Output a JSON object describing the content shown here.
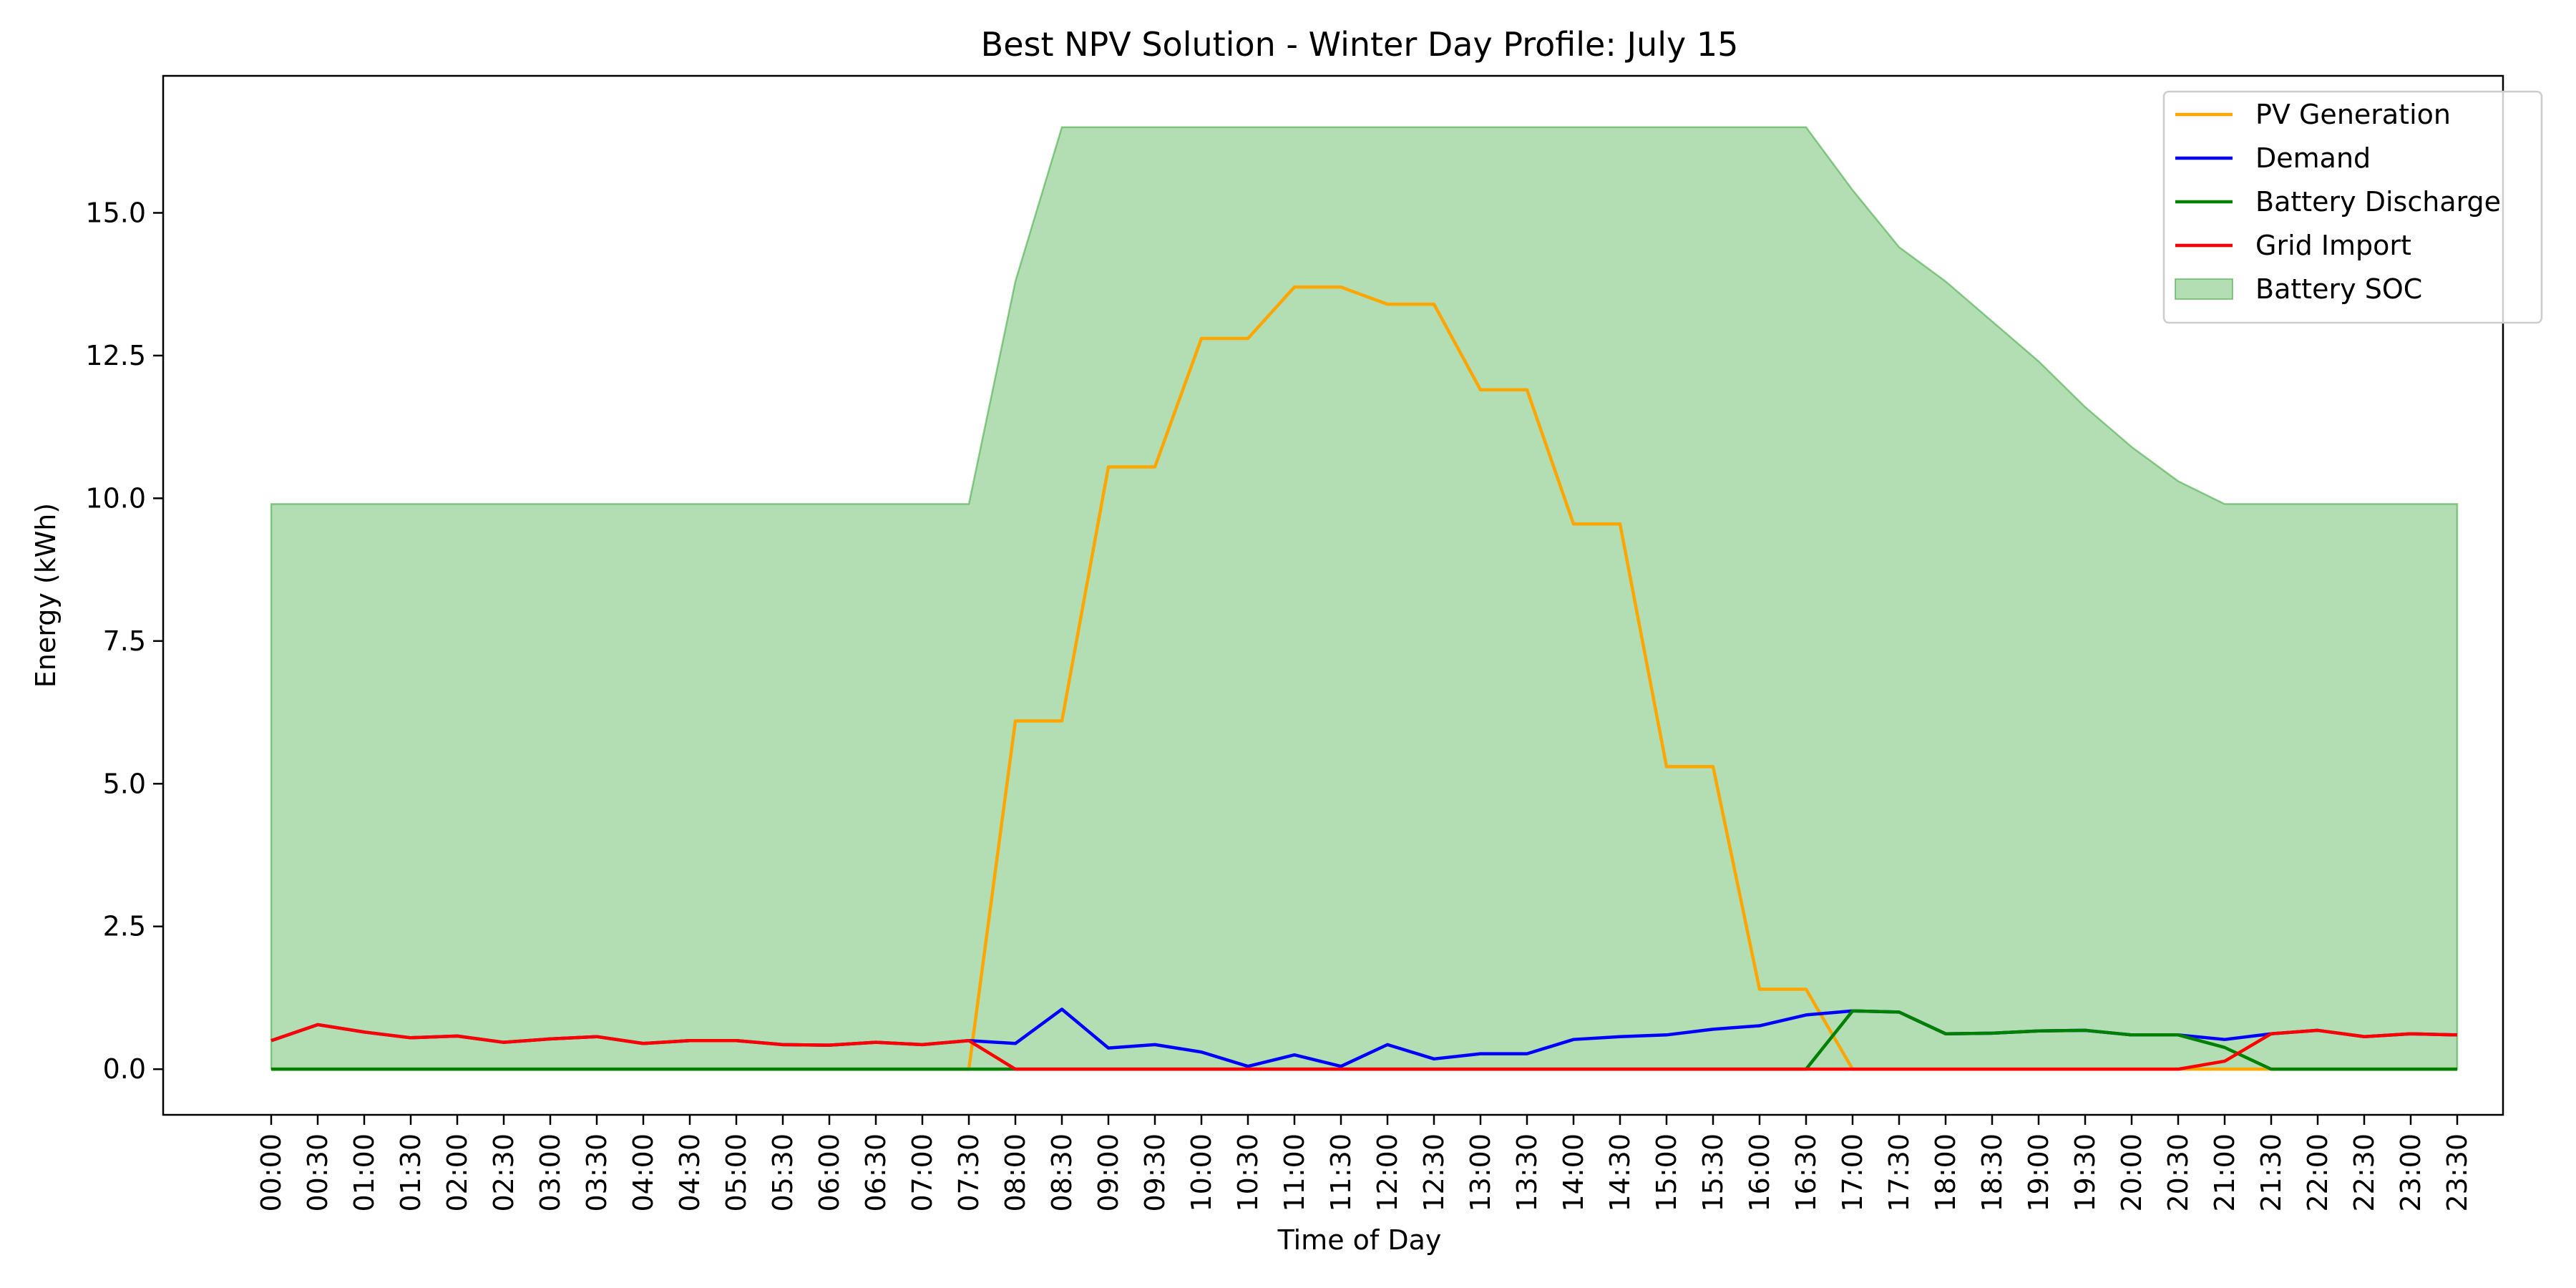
{
  "chart_data": {
    "type": "line",
    "title": "Best NPV Solution - Winter Day Profile: July 15",
    "xlabel": "Time of Day",
    "ylabel": "Energy (kWh)",
    "ylim": [
      -0.8,
      17.4
    ],
    "yticks": [
      0.0,
      2.5,
      5.0,
      7.5,
      10.0,
      12.5,
      15.0
    ],
    "ytick_labels": [
      "0.0",
      "2.5",
      "5.0",
      "7.5",
      "10.0",
      "12.5",
      "15.0"
    ],
    "grid": false,
    "legend_position": "top-right",
    "x": [
      "00:00",
      "00:30",
      "01:00",
      "01:30",
      "02:00",
      "02:30",
      "03:00",
      "03:30",
      "04:00",
      "04:30",
      "05:00",
      "05:30",
      "06:00",
      "06:30",
      "07:00",
      "07:30",
      "08:00",
      "08:30",
      "09:00",
      "09:30",
      "10:00",
      "10:30",
      "11:00",
      "11:30",
      "12:00",
      "12:30",
      "13:00",
      "13:30",
      "14:00",
      "14:30",
      "15:00",
      "15:30",
      "16:00",
      "16:30",
      "17:00",
      "17:30",
      "18:00",
      "18:30",
      "19:00",
      "19:30",
      "20:00",
      "20:30",
      "21:00",
      "21:30",
      "22:00",
      "22:30",
      "23:00",
      "23:30"
    ],
    "series": [
      {
        "name": "Battery SOC",
        "kind": "area",
        "color": "#2ca02c",
        "values": [
          9.9,
          9.9,
          9.9,
          9.9,
          9.9,
          9.9,
          9.9,
          9.9,
          9.9,
          9.9,
          9.9,
          9.9,
          9.9,
          9.9,
          9.9,
          9.9,
          13.8,
          16.5,
          16.5,
          16.5,
          16.5,
          16.5,
          16.5,
          16.5,
          16.5,
          16.5,
          16.5,
          16.5,
          16.5,
          16.5,
          16.5,
          16.5,
          16.5,
          16.5,
          15.4,
          14.4,
          13.8,
          13.1,
          12.4,
          11.6,
          10.9,
          10.3,
          9.9,
          9.9,
          9.9,
          9.9,
          9.9,
          9.9
        ]
      },
      {
        "name": "PV Generation",
        "kind": "line",
        "color": "#ffa500",
        "values": [
          0,
          0,
          0,
          0,
          0,
          0,
          0,
          0,
          0,
          0,
          0,
          0,
          0,
          0,
          0,
          0,
          6.1,
          6.1,
          10.55,
          10.55,
          12.8,
          12.8,
          13.7,
          13.7,
          13.4,
          13.4,
          11.9,
          11.9,
          9.55,
          9.55,
          5.3,
          5.3,
          1.4,
          1.4,
          0,
          0,
          0,
          0,
          0,
          0,
          0,
          0,
          0,
          0,
          0,
          0,
          0,
          0
        ]
      },
      {
        "name": "Demand",
        "kind": "line",
        "color": "#0000ff",
        "values": [
          0.5,
          0.78,
          0.65,
          0.55,
          0.58,
          0.47,
          0.53,
          0.57,
          0.45,
          0.5,
          0.5,
          0.43,
          0.42,
          0.47,
          0.43,
          0.5,
          0.45,
          1.05,
          0.37,
          0.43,
          0.3,
          0.05,
          0.25,
          0.05,
          0.43,
          0.18,
          0.27,
          0.27,
          0.52,
          0.57,
          0.6,
          0.7,
          0.76,
          0.95,
          1.02,
          1.0,
          0.62,
          0.63,
          0.67,
          0.68,
          0.6,
          0.6,
          0.52,
          0.62,
          0.68,
          0.57,
          0.62,
          0.6
        ]
      },
      {
        "name": "Battery Discharge",
        "kind": "line",
        "color": "#008000",
        "values": [
          0,
          0,
          0,
          0,
          0,
          0,
          0,
          0,
          0,
          0,
          0,
          0,
          0,
          0,
          0,
          0,
          0,
          0,
          0,
          0,
          0,
          0,
          0,
          0,
          0,
          0,
          0,
          0,
          0,
          0,
          0,
          0,
          0,
          0,
          1.02,
          1.0,
          0.62,
          0.63,
          0.67,
          0.68,
          0.6,
          0.6,
          0.38,
          0,
          0,
          0,
          0,
          0
        ]
      },
      {
        "name": "Grid Import",
        "kind": "line",
        "color": "#ff0000",
        "values": [
          0.5,
          0.78,
          0.65,
          0.55,
          0.58,
          0.47,
          0.53,
          0.57,
          0.45,
          0.5,
          0.5,
          0.43,
          0.42,
          0.47,
          0.43,
          0.5,
          0,
          0,
          0,
          0,
          0,
          0,
          0,
          0,
          0,
          0,
          0,
          0,
          0,
          0,
          0,
          0,
          0,
          0,
          0,
          0,
          0,
          0,
          0,
          0,
          0,
          0,
          0.14,
          0.62,
          0.68,
          0.57,
          0.62,
          0.6
        ]
      }
    ],
    "legend_order": [
      "PV Generation",
      "Demand",
      "Battery Discharge",
      "Grid Import",
      "Battery SOC"
    ]
  }
}
